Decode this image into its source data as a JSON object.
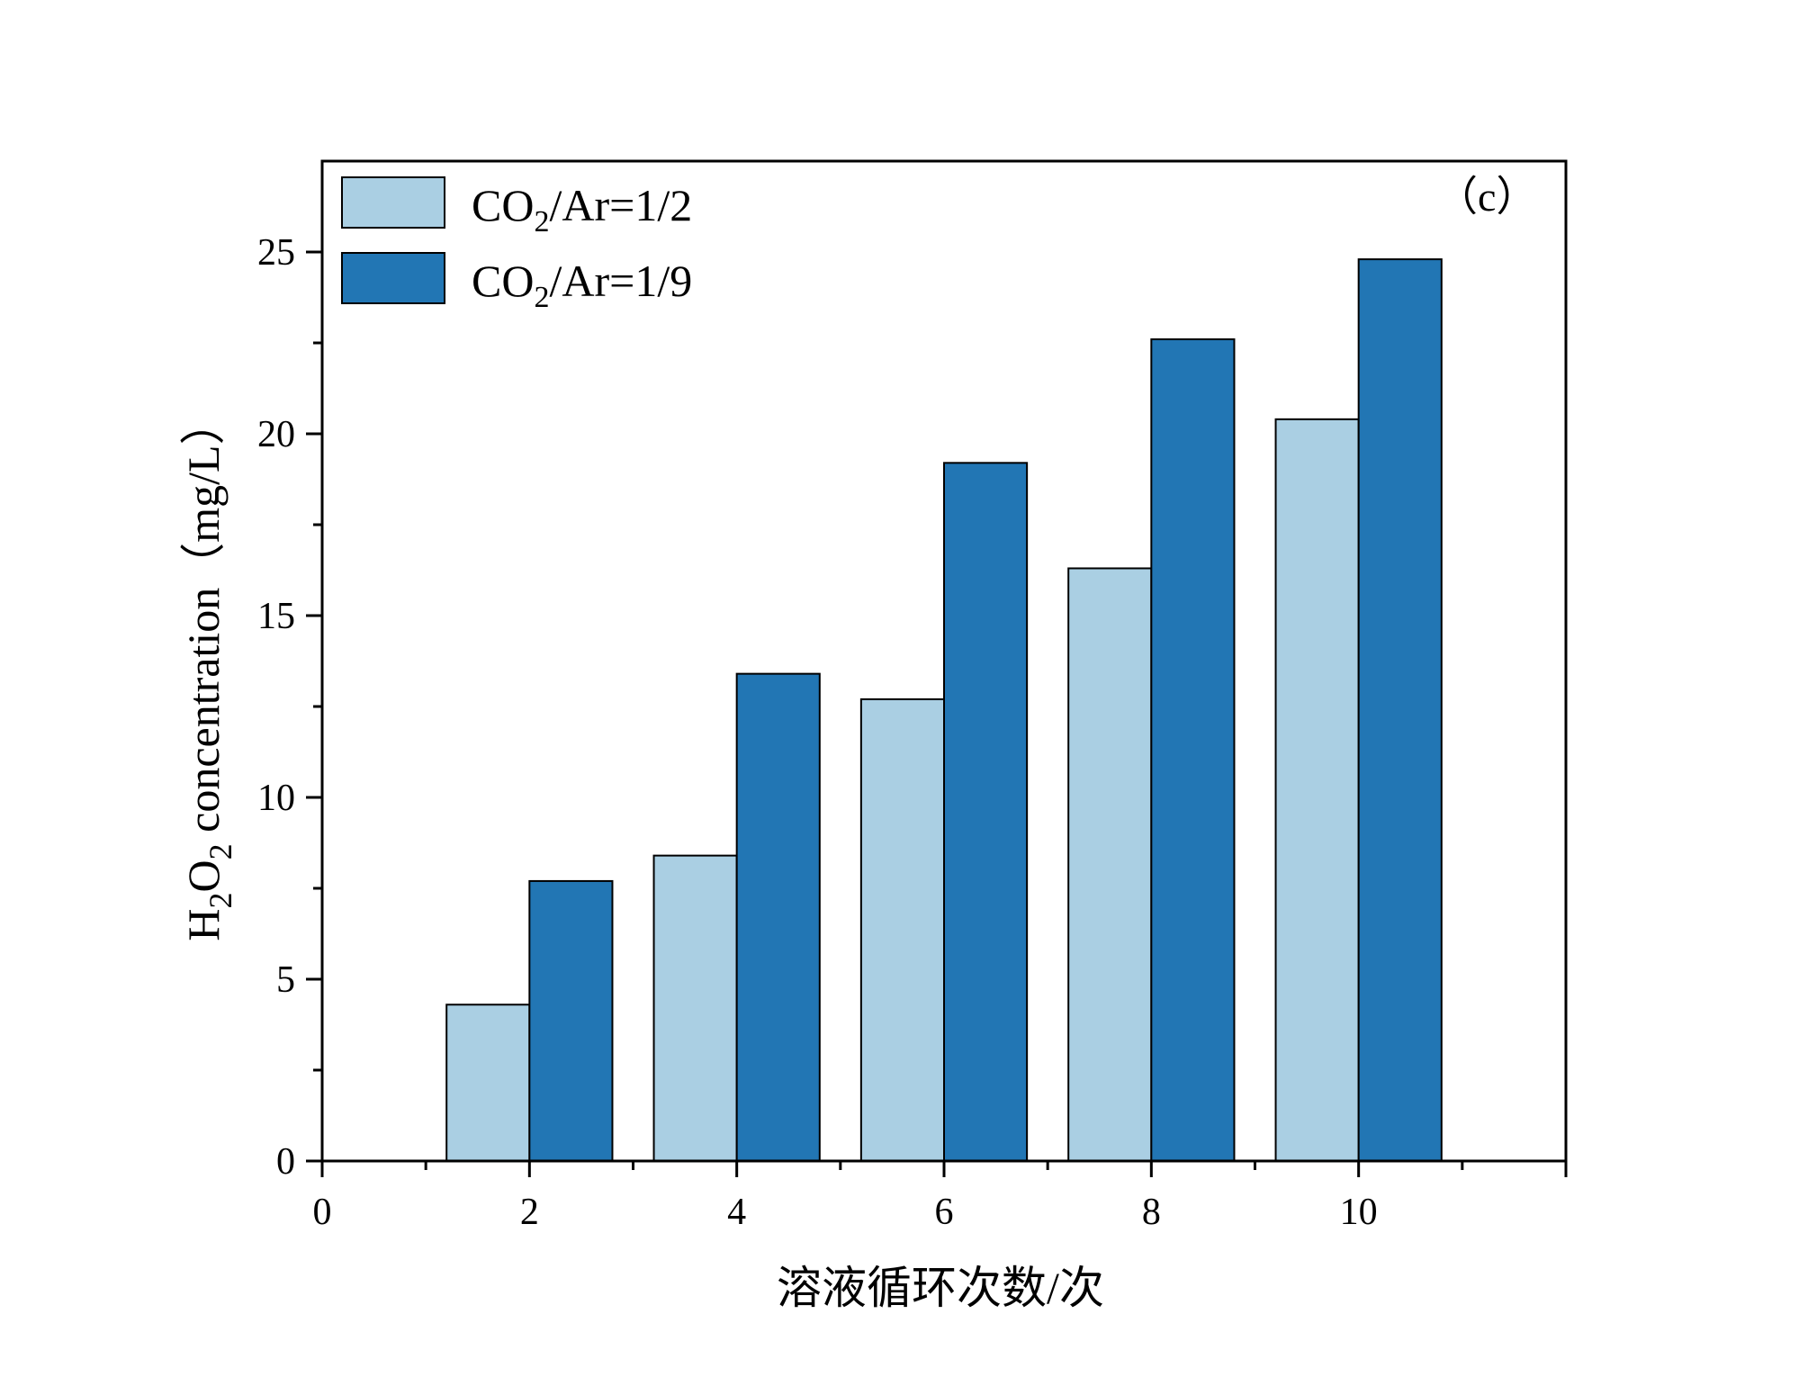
{
  "chart_data": {
    "type": "bar",
    "x": [
      2,
      4,
      6,
      8,
      10
    ],
    "xlim": [
      0,
      12
    ],
    "xticks": [
      0,
      2,
      4,
      6,
      8,
      10
    ],
    "ylim": [
      0,
      27.5
    ],
    "yticks": [
      0,
      5,
      10,
      15,
      20,
      25
    ],
    "xlabel": "溶液循环次数/次",
    "ylabel_parts": {
      "prefix": "H",
      "sub1": "2",
      "mid": "O",
      "sub2": "2",
      "suffix": " concentration（mg/L）"
    },
    "panel_label": "（c）",
    "legend_position": "top-left",
    "series": [
      {
        "name_parts": {
          "prefix": "CO",
          "sub": "2",
          "suffix": "/Ar=1/2"
        },
        "color": "#aacfe3",
        "values": [
          4.3,
          8.4,
          12.7,
          16.3,
          20.4
        ]
      },
      {
        "name_parts": {
          "prefix": "CO",
          "sub": "2",
          "suffix": "/Ar=1/9"
        },
        "color": "#2276b4",
        "values": [
          7.7,
          13.4,
          19.2,
          22.6,
          24.8
        ]
      }
    ]
  }
}
